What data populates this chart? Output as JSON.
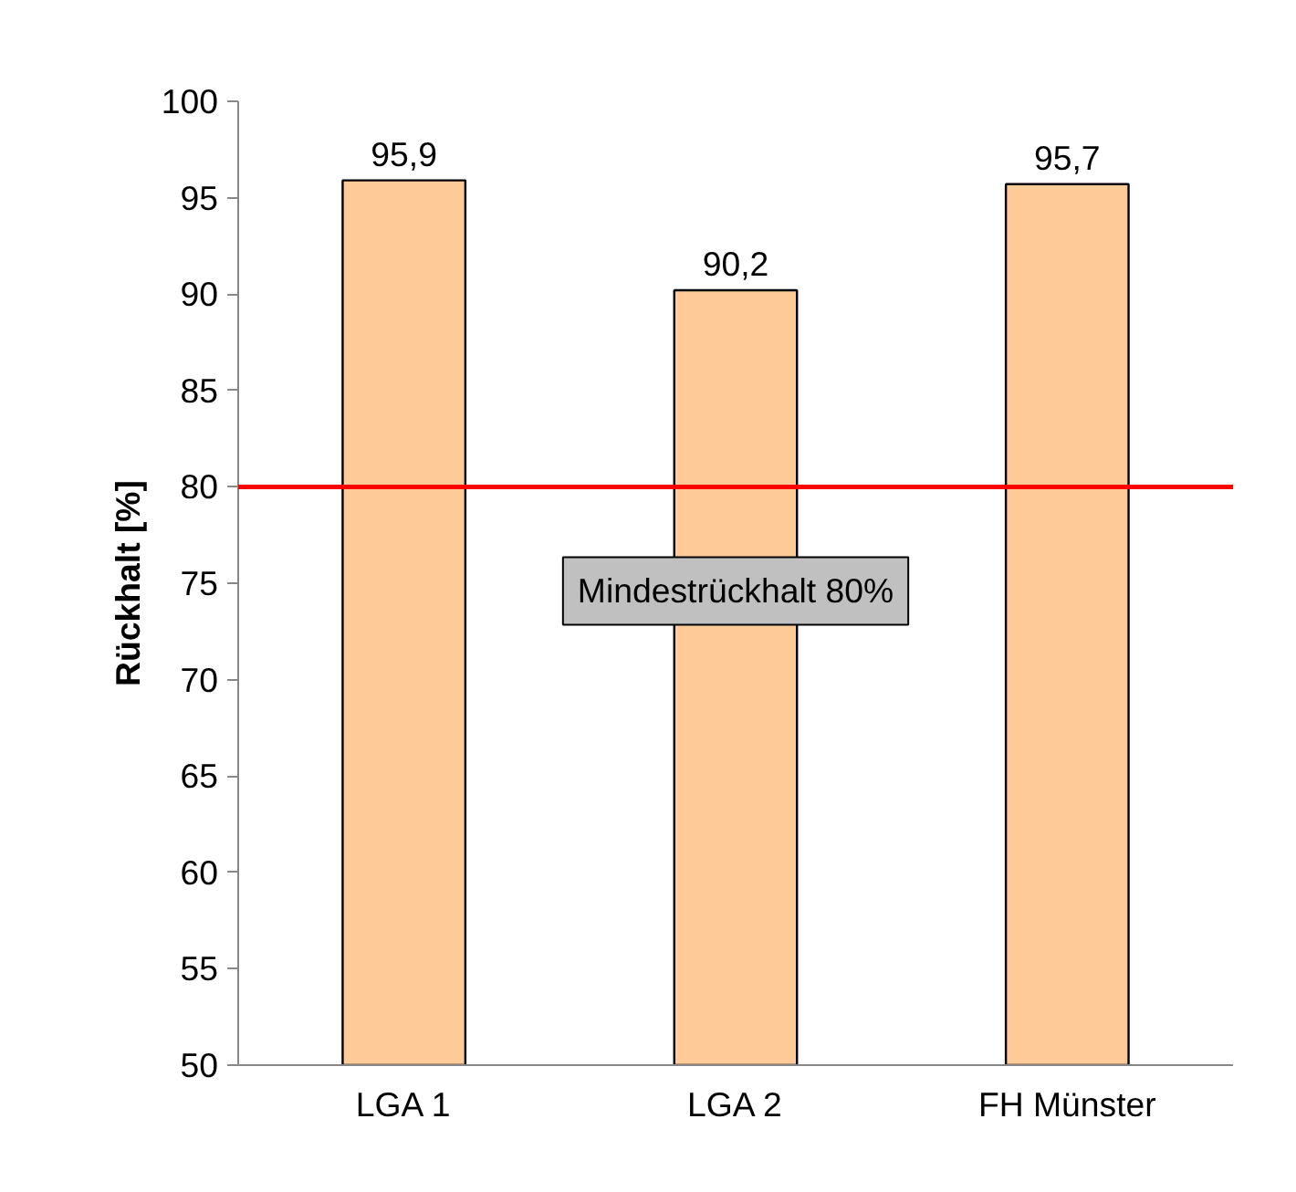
{
  "chart_data": {
    "type": "bar",
    "ylabel": "Rückhalt [%]",
    "categories": [
      "LGA 1",
      "LGA 2",
      "FH Münster"
    ],
    "values": [
      95.9,
      90.2,
      95.7
    ],
    "value_labels": [
      "95,9",
      "90,2",
      "95,7"
    ],
    "color": "#fdca98",
    "ylim": [
      50,
      100
    ],
    "yticks": [
      50,
      55,
      60,
      65,
      70,
      75,
      80,
      85,
      90,
      95,
      100
    ],
    "ref_lines": [
      {
        "axis": "y",
        "value": 80,
        "label": "Mindestrückhalt 80%",
        "color": "#ff0000"
      }
    ],
    "grid": false
  }
}
